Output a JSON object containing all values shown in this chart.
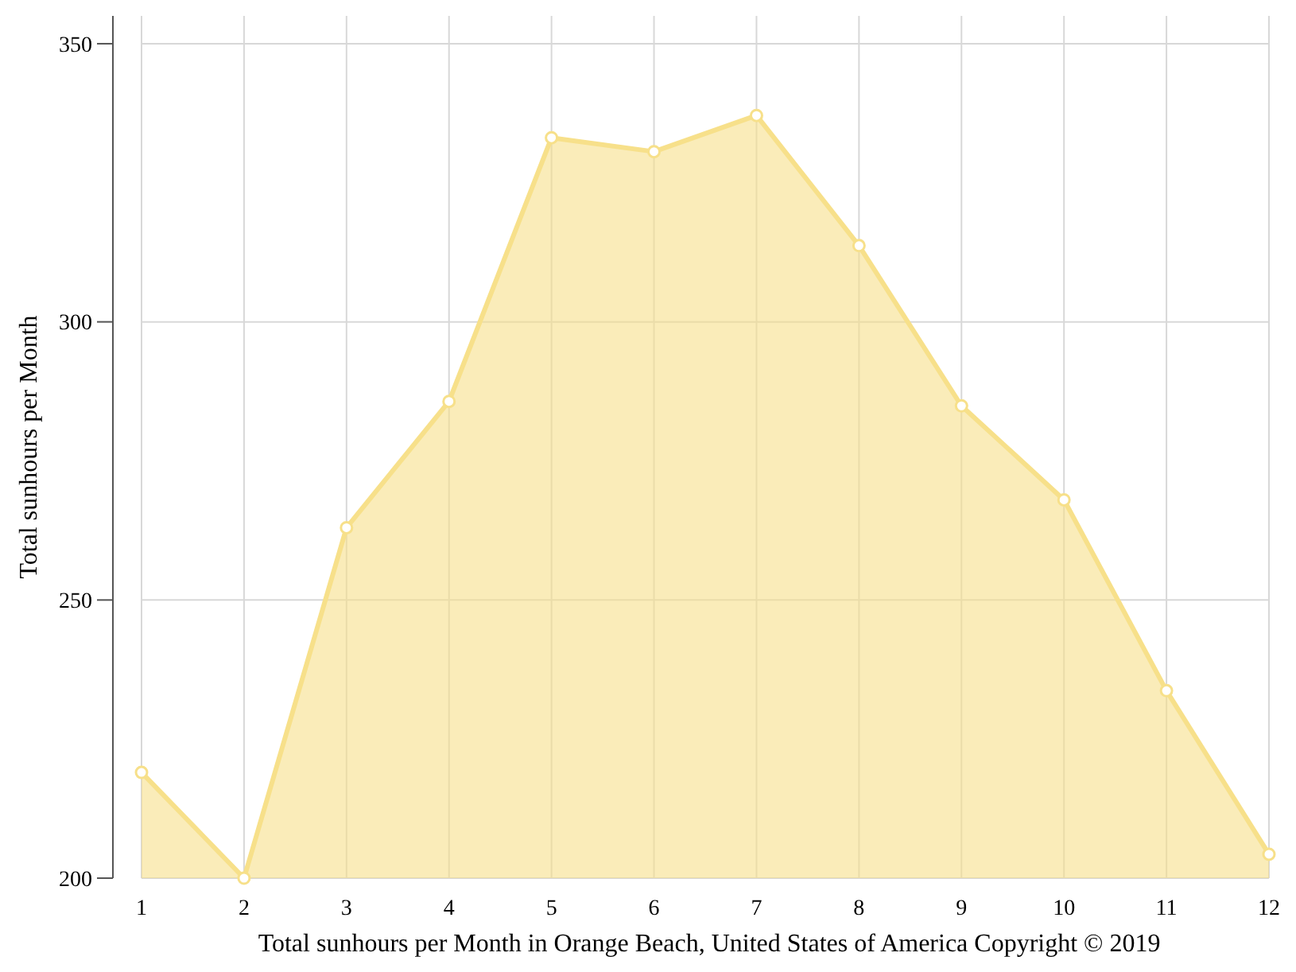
{
  "chart_data": {
    "type": "area",
    "xlabel": "Total sunhours per Month in Orange Beach, United States of America Copyright © 2019",
    "ylabel": "Total sunhours per Month",
    "x": [
      1,
      2,
      3,
      4,
      5,
      6,
      7,
      8,
      9,
      10,
      11,
      12
    ],
    "series": [
      {
        "color": "#f7e08a",
        "values": [
          219,
          200,
          263,
          285.7,
          333.1,
          330.6,
          337.1,
          313.7,
          284.9,
          268,
          233.7,
          204.3
        ]
      }
    ],
    "xlim": [
      1,
      12
    ],
    "xticks": [
      1,
      2,
      3,
      4,
      5,
      6,
      7,
      8,
      9,
      10,
      11,
      12
    ],
    "ylim": [
      200,
      355
    ],
    "yticks": [
      200,
      250,
      300,
      350
    ],
    "grid": true,
    "marker": "circle"
  }
}
